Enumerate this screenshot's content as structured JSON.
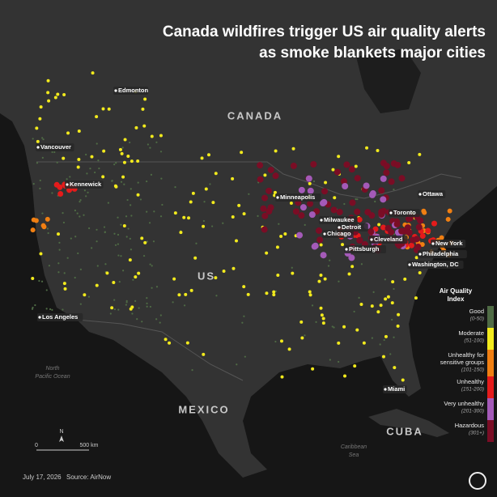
{
  "title": [
    "Canada wildfires trigger US air quality alerts",
    "as smoke blankets major cities"
  ],
  "regions": [
    "CANADA",
    "US",
    "MEXICO",
    "CUBA"
  ],
  "waters": [
    "North",
    "Pacific Ocean",
    "Caribbean",
    "Sea"
  ],
  "cities": [
    "Edmonton",
    "Vancouver",
    "Kennewick",
    "Minneapolis",
    "Milwaukee",
    "Detroit",
    "Toronto",
    "Ottawa",
    "Chicago",
    "Cleveland",
    "Pittsburgh",
    "New York",
    "Philadelphia",
    "Washington, DC",
    "Los Angeles",
    "Miami"
  ],
  "legend": {
    "title": [
      "Air Quality",
      "Index"
    ],
    "items": [
      {
        "label": [
          "Good"
        ],
        "range": "(0-50)",
        "color": "#4f6b45"
      },
      {
        "label": [
          "Moderate"
        ],
        "range": "(51-100)",
        "color": "#f2ea1d"
      },
      {
        "label": [
          "Unhealthy for",
          "sensitive groups"
        ],
        "range": "(101-150)",
        "color": "#f07f12"
      },
      {
        "label": [
          "Unhealthy"
        ],
        "range": "(151-200)",
        "color": "#e41b1b"
      },
      {
        "label": [
          "Very unhealthy"
        ],
        "range": "(201-300)",
        "color": "#a45ab8"
      },
      {
        "label": [
          "Hazardous"
        ],
        "range": "(301+)",
        "color": "#7a0d25"
      }
    ]
  },
  "scale": {
    "north": "N",
    "start": "0",
    "end": "500 km"
  },
  "footer": {
    "date": "July 17, 2026",
    "source": "Source: AirNow"
  }
}
